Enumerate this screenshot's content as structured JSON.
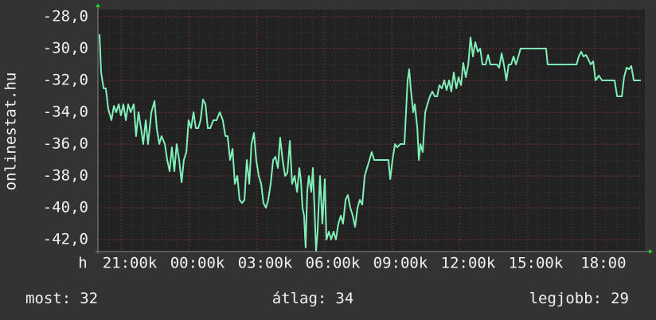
{
  "chart_data": {
    "type": "line",
    "y_label": "onlinestat.hu",
    "x_label": "h",
    "xlim": [
      19.94,
      44.19
    ],
    "ylim": [
      -42.75,
      -27.55
    ],
    "xticks": [
      {
        "value": 21,
        "label": "21:00k"
      },
      {
        "value": 24,
        "label": "00:00k"
      },
      {
        "value": 27,
        "label": "03:00k"
      },
      {
        "value": 30,
        "label": "06:00k"
      },
      {
        "value": 33,
        "label": "09:00k"
      },
      {
        "value": 36,
        "label": "12:00k"
      },
      {
        "value": 39,
        "label": "15:00k"
      },
      {
        "value": 42,
        "label": "18:00"
      }
    ],
    "yticks": [
      {
        "value": -28,
        "label": "-28,0"
      },
      {
        "value": -30,
        "label": "-30,0"
      },
      {
        "value": -32,
        "label": "-32,0"
      },
      {
        "value": -34,
        "label": "-34,0"
      },
      {
        "value": -36,
        "label": "-36,0"
      },
      {
        "value": -38,
        "label": "-38,0"
      },
      {
        "value": -40,
        "label": "-40,0"
      },
      {
        "value": -42,
        "label": "-42,0"
      }
    ],
    "grid": true,
    "series": [
      {
        "color": "#80f0b8",
        "x": [
          20.01,
          20.08,
          20.19,
          20.29,
          20.4,
          20.54,
          20.65,
          20.75,
          20.86,
          20.96,
          21.07,
          21.18,
          21.28,
          21.39,
          21.53,
          21.63,
          21.74,
          21.85,
          21.95,
          22.06,
          22.16,
          22.31,
          22.45,
          22.55,
          22.66,
          22.76,
          22.91,
          23.01,
          23.12,
          23.22,
          23.33,
          23.43,
          23.54,
          23.65,
          23.75,
          23.86,
          23.96,
          24.07,
          24.18,
          24.28,
          24.39,
          24.49,
          24.6,
          24.71,
          24.81,
          24.92,
          25.06,
          25.2,
          25.34,
          25.48,
          25.59,
          25.69,
          25.8,
          25.91,
          26.01,
          26.12,
          26.22,
          26.33,
          26.44,
          26.54,
          26.65,
          26.75,
          26.86,
          26.96,
          27.07,
          27.18,
          27.28,
          27.39,
          27.49,
          27.6,
          27.71,
          27.81,
          27.92,
          28.02,
          28.13,
          28.24,
          28.34,
          28.45,
          28.55,
          28.66,
          28.77,
          28.87,
          28.94,
          29.01,
          29.08,
          29.15,
          29.22,
          29.29,
          29.4,
          29.47,
          29.54,
          29.61,
          29.68,
          29.79,
          29.89,
          30.0,
          30.07,
          30.18,
          30.28,
          30.39,
          30.49,
          30.6,
          30.71,
          30.81,
          30.92,
          31.02,
          31.13,
          31.24,
          31.34,
          31.45,
          31.55,
          31.66,
          31.77,
          31.87,
          31.98,
          32.08,
          32.19,
          32.37,
          32.54,
          32.72,
          32.82,
          32.9,
          33.0,
          33.11,
          33.21,
          33.35,
          33.53,
          33.6,
          33.67,
          33.74,
          33.81,
          33.92,
          33.99,
          34.1,
          34.17,
          34.24,
          34.34,
          34.45,
          34.55,
          34.66,
          34.77,
          34.87,
          34.98,
          35.08,
          35.19,
          35.3,
          35.4,
          35.51,
          35.61,
          35.72,
          35.83,
          35.93,
          36.04,
          36.14,
          36.25,
          36.36,
          36.46,
          36.57,
          36.67,
          36.78,
          36.89,
          36.99,
          37.13,
          37.24,
          37.34,
          37.48,
          37.63,
          37.73,
          37.84,
          37.94,
          38.05,
          38.15,
          38.26,
          38.37,
          38.47,
          38.58,
          38.68,
          38.9,
          39.25,
          39.6,
          39.81,
          39.88,
          40.31,
          40.84,
          41.16,
          41.26,
          41.37,
          41.47,
          41.58,
          41.69,
          41.79,
          41.9,
          42.0,
          42.15,
          42.29,
          42.5,
          42.71,
          42.85,
          42.96,
          43.17,
          43.27,
          43.38,
          43.49,
          43.59,
          43.7,
          43.84,
          44.01
        ],
        "values": [
          -29.1,
          -31.5,
          -32.5,
          -32.5,
          -33.8,
          -34.5,
          -33.6,
          -34,
          -33.5,
          -34.2,
          -33.5,
          -34.5,
          -33.5,
          -34,
          -33.5,
          -35.5,
          -34,
          -35,
          -36,
          -34.5,
          -36,
          -34,
          -33.3,
          -35,
          -36,
          -35.5,
          -36,
          -37,
          -37.7,
          -36.2,
          -37.7,
          -36,
          -37,
          -38.4,
          -37,
          -36.5,
          -34.5,
          -35,
          -34,
          -35,
          -35,
          -34.5,
          -33.2,
          -33.5,
          -35,
          -35,
          -34.5,
          -34.5,
          -34,
          -34.5,
          -35.5,
          -35.5,
          -37,
          -36.3,
          -38.5,
          -38,
          -39.5,
          -39.7,
          -39.5,
          -37,
          -38.5,
          -36,
          -35.3,
          -37,
          -38,
          -38.5,
          -39.7,
          -40,
          -39.5,
          -38.5,
          -37,
          -36.8,
          -37.5,
          -35.6,
          -37,
          -38,
          -37.8,
          -35.8,
          -38.5,
          -38,
          -39,
          -37.5,
          -38.3,
          -40,
          -40.5,
          -42.5,
          -39,
          -38,
          -39,
          -37.5,
          -40,
          -42.7,
          -41.5,
          -38,
          -41,
          -38.2,
          -42,
          -41.5,
          -42,
          -41.5,
          -42,
          -41,
          -40.5,
          -41,
          -39.5,
          -39.2,
          -40,
          -40.5,
          -41.2,
          -40,
          -39.5,
          -39.8,
          -38,
          -37.5,
          -37,
          -36.5,
          -37,
          -37,
          -37,
          -37,
          -37,
          -38.2,
          -37,
          -36,
          -36.2,
          -36,
          -36,
          -34,
          -32,
          -31.3,
          -32.5,
          -34,
          -33.5,
          -35,
          -37,
          -36,
          -36.5,
          -34,
          -33.5,
          -33,
          -32.7,
          -33,
          -33,
          -32.3,
          -32.5,
          -32,
          -32.6,
          -32,
          -32.7,
          -31.5,
          -32.5,
          -31.8,
          -32.3,
          -30.9,
          -31.8,
          -31,
          -29.3,
          -30.5,
          -29.6,
          -30.2,
          -30,
          -31,
          -31,
          -30.4,
          -31,
          -31,
          -31,
          -31.2,
          -30.3,
          -31,
          -32,
          -31,
          -31,
          -30.5,
          -31,
          -30.5,
          -30,
          -30,
          -30,
          -30,
          -30,
          -31,
          -31,
          -31,
          -31,
          -30.5,
          -30.2,
          -30.5,
          -30.4,
          -30.7,
          -31,
          -30.8,
          -32,
          -31.7,
          -32,
          -32,
          -32,
          -32,
          -33,
          -33,
          -31.8,
          -31.2,
          -31.3,
          -31.1,
          -32,
          -32,
          -32
        ]
      }
    ],
    "stats": [
      {
        "label": "most:",
        "value": 32
      },
      {
        "label": "átlag:",
        "value": 34
      },
      {
        "label": "legjobb:",
        "value": 29
      }
    ]
  }
}
